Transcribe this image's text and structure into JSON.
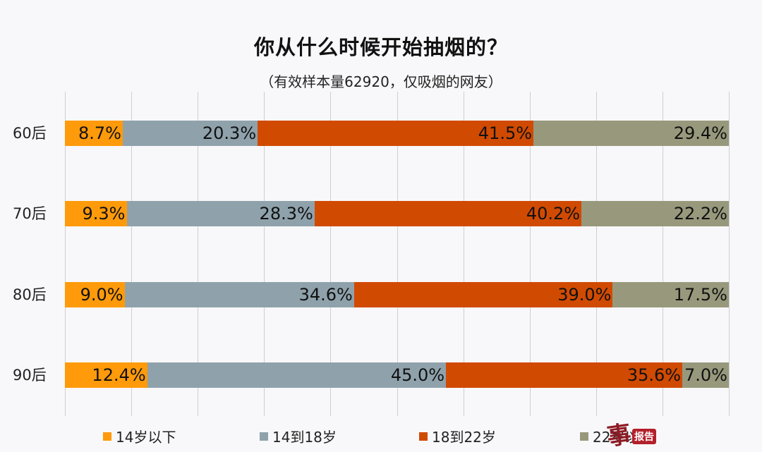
{
  "title": "你从什么时候开始抽烟的？",
  "subtitle": "（有效样本量62920，仅吸烟的网友）",
  "colors": {
    "under14": "#FF9A0A",
    "14to18": "#8FA2AC",
    "18to22": "#D14A02",
    "over22": "#98997C",
    "grid": "#cfcfd4",
    "background": "#f8f8fa"
  },
  "legend": [
    {
      "label": "14岁以下",
      "color": "#FF9A0A"
    },
    {
      "label": "14到18岁",
      "color": "#8FA2AC"
    },
    {
      "label": "18到22岁",
      "color": "#D14A02"
    },
    {
      "label": "22岁以上",
      "color": "#98997C"
    }
  ],
  "watermark": {
    "stamp_text": "报告",
    "glyph": "事"
  },
  "rows": [
    {
      "label": "60后",
      "values": [
        "8.7%",
        "20.3%",
        "41.5%",
        "29.4%"
      ]
    },
    {
      "label": "70后",
      "values": [
        "9.3%",
        "28.3%",
        "40.2%",
        "22.2%"
      ]
    },
    {
      "label": "80后",
      "values": [
        "9.0%",
        "34.6%",
        "39.0%",
        "17.5%"
      ]
    },
    {
      "label": "90后",
      "values": [
        "12.4%",
        "45.0%",
        "35.6%",
        "7.0%"
      ]
    }
  ],
  "chart_data": {
    "type": "bar",
    "orientation": "horizontal",
    "stacked": "100%",
    "title": "你从什么时候开始抽烟的？",
    "subtitle": "（有效样本量62920，仅吸烟的网友）",
    "categories": [
      "60后",
      "70后",
      "80后",
      "90后"
    ],
    "series": [
      {
        "name": "14岁以下",
        "color": "#FF9A0A",
        "values": [
          8.7,
          9.3,
          9.0,
          12.4
        ]
      },
      {
        "name": "14到18岁",
        "color": "#8FA2AC",
        "values": [
          20.3,
          28.3,
          34.6,
          45.0
        ]
      },
      {
        "name": "18到22岁",
        "color": "#D14A02",
        "values": [
          41.5,
          40.2,
          39.0,
          35.6
        ]
      },
      {
        "name": "22岁以上",
        "color": "#98997C",
        "values": [
          29.4,
          22.2,
          17.5,
          7.0
        ]
      }
    ],
    "xlabel": "",
    "ylabel": "",
    "xlim": [
      0,
      100
    ],
    "grid": true,
    "grid_interval": 10,
    "legend_position": "bottom",
    "data_labels": true
  }
}
